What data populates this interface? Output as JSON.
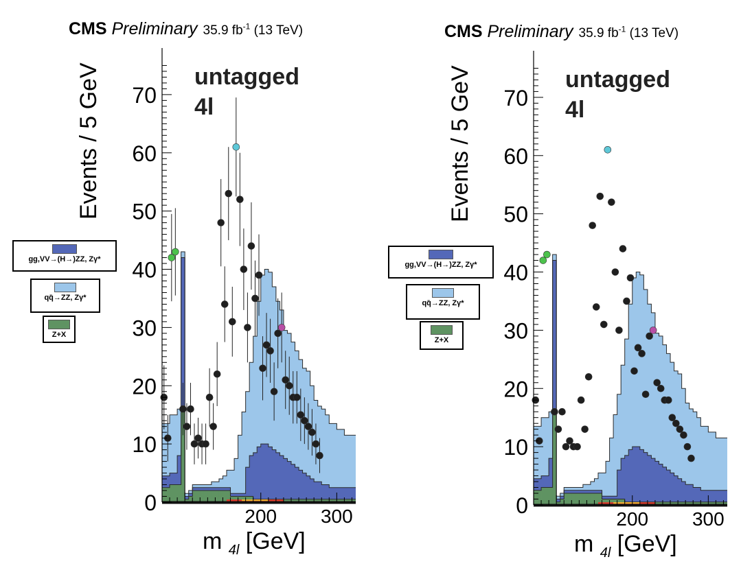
{
  "colors": {
    "signal": "#5468b8",
    "qqzz": "#9cc6ea",
    "zx": "#5f9362",
    "data": "#1f1f1f",
    "highlight_cyan": "#5ec8d8",
    "highlight_magenta": "#b84fa6",
    "highlight_green": "#4cc24c"
  },
  "panels": [
    {
      "header": {
        "cms": "CMS",
        "prelim": "Preliminary",
        "lumi": "35.9 fb",
        "lumi_exp": "-1",
        "energy": "(13 TeV)"
      },
      "category_line1": "untagged",
      "category_line2": "4l",
      "ylabel": "Events / 5 GeV",
      "xlabel_main": "m",
      "xlabel_sub": "4l",
      "xlabel_unit": "[GeV]",
      "legend": [
        {
          "label": "gg,VV→(H→)ZZ, Zγ*",
          "color_key": "signal"
        },
        {
          "label": "qq̄→ZZ, Zγ*",
          "color_key": "qqzz"
        },
        {
          "label": "Z+X",
          "color_key": "zx"
        }
      ]
    },
    {
      "header": {
        "cms": "CMS",
        "prelim": "Preliminary",
        "lumi": "35.9 fb",
        "lumi_exp": "-1",
        "energy": "(13 TeV)"
      },
      "category_line1": "untagged",
      "category_line2": "4l",
      "ylabel": "Events / 5 GeV",
      "xlabel_main": "m",
      "xlabel_sub": "4l",
      "xlabel_unit": "[GeV]",
      "legend": [
        {
          "label": "gg,VV→(H→)ZZ, Zγ*",
          "color_key": "signal"
        },
        {
          "label": "qq̄→ZZ, Zγ*",
          "color_key": "qqzz"
        },
        {
          "label": "Z+X",
          "color_key": "zx"
        }
      ]
    }
  ],
  "chart_data": [
    {
      "type": "bar",
      "title": "",
      "xlabel": "m 4l [GeV]",
      "ylabel": "Events / 5 GeV",
      "xlim": [
        70,
        325
      ],
      "ylim": [
        0,
        78
      ],
      "yticks": [
        0,
        10,
        20,
        30,
        40,
        50,
        60,
        70
      ],
      "xticks": [
        200,
        300
      ],
      "bin_edges_start": 70,
      "bin_width": 5,
      "stack": [
        {
          "name": "Z+X",
          "color_key": "zx",
          "values": [
            2.5,
            2.5,
            3,
            3,
            3,
            16,
            0.5,
            1,
            2,
            2,
            2,
            2,
            2,
            2,
            2,
            2,
            2,
            2,
            1,
            1,
            1,
            1,
            1,
            1,
            0.5,
            0.5,
            0.5,
            0.5,
            0.5,
            0.5,
            0.5,
            0.5,
            0.5,
            0.5,
            0.5,
            0.5,
            0.5,
            0.5,
            0.5,
            0.5,
            0.5,
            0.5,
            0.5,
            0.5,
            0.5,
            0.5,
            0.5,
            0.5,
            0.5,
            0.5,
            0.5
          ]
        },
        {
          "name": "gg,VV→(H→)ZZ, Zγ*",
          "color_key": "signal",
          "values": [
            2,
            2,
            2,
            2,
            5,
            26,
            0.5,
            0.5,
            0.5,
            0.5,
            0.5,
            0.5,
            0.5,
            0.5,
            0.5,
            0.5,
            0.5,
            0.5,
            0.5,
            0.5,
            0.5,
            0.5,
            5,
            7,
            8,
            9,
            9.5,
            9.5,
            9,
            8.5,
            8,
            7.5,
            7,
            6.5,
            6,
            5.5,
            5,
            4.5,
            4,
            3.5,
            3,
            3,
            2.5,
            2.5,
            2,
            2,
            2,
            2,
            2,
            2,
            2
          ]
        },
        {
          "name": "qq̄→ZZ, Zγ*",
          "color_key": "qqzz",
          "values": [
            9,
            9,
            10,
            10,
            8,
            1,
            0.5,
            0.5,
            0.5,
            0.5,
            0.5,
            0.5,
            0.5,
            1,
            1,
            1.5,
            2,
            3,
            4,
            6,
            10,
            14,
            13,
            16,
            20,
            25,
            29,
            30,
            30,
            28,
            26,
            25,
            22,
            22,
            21,
            20,
            19,
            18,
            18,
            16,
            14,
            13,
            13,
            12,
            11,
            11,
            10,
            10,
            9,
            9,
            9
          ]
        }
      ],
      "data_points": [
        {
          "x": 72.5,
          "y": 18,
          "err": 5.5
        },
        {
          "x": 77.5,
          "y": 11,
          "err": 4
        },
        {
          "x": 82.5,
          "y": 42,
          "err": 7.5,
          "c": "highlight_green"
        },
        {
          "x": 87.5,
          "y": 43,
          "err": 7.5,
          "c": "highlight_green"
        },
        {
          "x": 97.5,
          "y": 16,
          "err": 4.5
        },
        {
          "x": 102.5,
          "y": 13,
          "err": 4
        },
        {
          "x": 107.5,
          "y": 16,
          "err": 4.5
        },
        {
          "x": 112.5,
          "y": 10,
          "err": 3.5
        },
        {
          "x": 117.5,
          "y": 11,
          "err": 3.5
        },
        {
          "x": 122.5,
          "y": 10,
          "err": 3.5
        },
        {
          "x": 127.5,
          "y": 10,
          "err": 3.5
        },
        {
          "x": 132.5,
          "y": 18,
          "err": 5
        },
        {
          "x": 137.5,
          "y": 13,
          "err": 4
        },
        {
          "x": 142.5,
          "y": 22,
          "err": 5.5
        },
        {
          "x": 147.5,
          "y": 48,
          "err": 7.5
        },
        {
          "x": 152.5,
          "y": 34,
          "err": 6.5
        },
        {
          "x": 157.5,
          "y": 53,
          "err": 8
        },
        {
          "x": 162.5,
          "y": 31,
          "err": 6
        },
        {
          "x": 167.5,
          "y": 61,
          "err": 8.5,
          "c": "highlight_cyan"
        },
        {
          "x": 172.5,
          "y": 52,
          "err": 8
        },
        {
          "x": 177.5,
          "y": 40,
          "err": 7
        },
        {
          "x": 182.5,
          "y": 30,
          "err": 6
        },
        {
          "x": 187.5,
          "y": 44,
          "err": 7.5
        },
        {
          "x": 192.5,
          "y": 35,
          "err": 6.5
        },
        {
          "x": 197.5,
          "y": 39,
          "err": 7
        },
        {
          "x": 202.5,
          "y": 23,
          "err": 5.5
        },
        {
          "x": 207.5,
          "y": 27,
          "err": 5.5
        },
        {
          "x": 212.5,
          "y": 26,
          "err": 5.5
        },
        {
          "x": 217.5,
          "y": 19,
          "err": 5
        },
        {
          "x": 222.5,
          "y": 29,
          "err": 6
        },
        {
          "x": 227.5,
          "y": 30,
          "err": 6,
          "c": "highlight_magenta"
        },
        {
          "x": 232.5,
          "y": 21,
          "err": 5
        },
        {
          "x": 237.5,
          "y": 20,
          "err": 5
        },
        {
          "x": 242.5,
          "y": 18,
          "err": 4.5
        },
        {
          "x": 247.5,
          "y": 18,
          "err": 4.5
        },
        {
          "x": 252.5,
          "y": 15,
          "err": 4.5
        },
        {
          "x": 257.5,
          "y": 14,
          "err": 4
        },
        {
          "x": 262.5,
          "y": 13,
          "err": 4
        },
        {
          "x": 267.5,
          "y": 12,
          "err": 4
        },
        {
          "x": 272.5,
          "y": 10,
          "err": 3.5
        },
        {
          "x": 277.5,
          "y": 8,
          "err": 3
        }
      ]
    },
    {
      "type": "bar",
      "title": "",
      "xlabel": "m 4l [GeV]",
      "ylabel": "Events / 5 GeV",
      "xlim": [
        70,
        325
      ],
      "ylim": [
        0,
        78
      ],
      "yticks": [
        0,
        10,
        20,
        30,
        40,
        50,
        60,
        70
      ],
      "xticks": [
        200,
        300
      ],
      "same_as_left": true,
      "error_bars": false
    }
  ]
}
